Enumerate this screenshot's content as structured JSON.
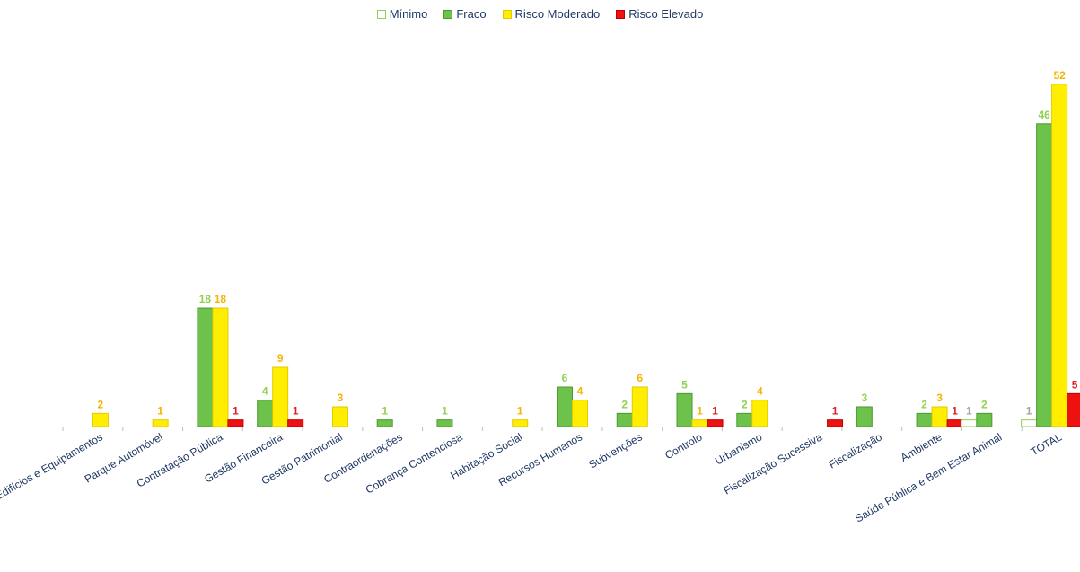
{
  "chart_data": {
    "type": "bar",
    "categories": [
      "Edifícios e Equipamentos",
      "Parque Automóvel",
      "Contratação Pública",
      "Gestão Financeira",
      "Gestão Patrimonial",
      "Contraordenações",
      "Cobrança Contenciosa",
      "Habitação Social",
      "Recursos Humanos",
      "Subvenções",
      "Controlo",
      "Urbanismo",
      "Fiscalização Sucessiva",
      "Fiscalização",
      "Ambiente",
      "Saúde Pública e Bem Estar Animal",
      "TOTAL"
    ],
    "series": [
      {
        "name": "Mínimo",
        "color": "#ffffff",
        "stroke": "#92d050",
        "label_color": "#a6a6a6",
        "values": [
          null,
          null,
          null,
          null,
          null,
          null,
          null,
          null,
          null,
          null,
          null,
          null,
          null,
          null,
          null,
          1,
          1
        ]
      },
      {
        "name": "Fraco",
        "color": "#6cc24a",
        "stroke": "#4e9a2f",
        "label_color": "#92d050",
        "values": [
          null,
          null,
          18,
          4,
          null,
          1,
          1,
          null,
          6,
          2,
          5,
          2,
          null,
          3,
          2,
          2,
          46
        ]
      },
      {
        "name": "Risco Moderado",
        "color": "#ffee00",
        "stroke": "#e6c800",
        "label_color": "#f4b400",
        "values": [
          2,
          1,
          18,
          9,
          3,
          null,
          null,
          1,
          4,
          6,
          1,
          4,
          null,
          null,
          3,
          null,
          52
        ]
      },
      {
        "name": "Risco Elevado",
        "color": "#ee1111",
        "stroke": "#c00000",
        "label_color": "#e02020",
        "values": [
          null,
          null,
          1,
          1,
          null,
          null,
          null,
          null,
          null,
          null,
          1,
          null,
          1,
          null,
          1,
          null,
          5
        ]
      }
    ],
    "ylim": [
      0,
      55
    ],
    "grid": false,
    "legend_position": "top-center",
    "data_labels": true
  }
}
